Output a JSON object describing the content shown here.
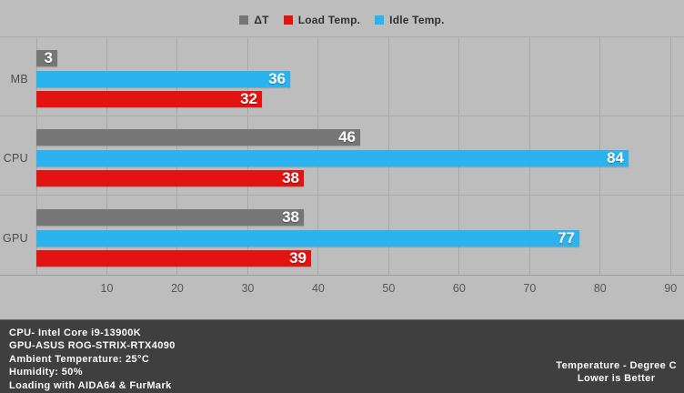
{
  "chart_data": {
    "type": "bar",
    "orientation": "horizontal",
    "categories": [
      "MB",
      "CPU",
      "GPU"
    ],
    "series": [
      {
        "name": "ΔT",
        "color": "#767676",
        "values": [
          3,
          46,
          38
        ]
      },
      {
        "name": "Load Temp.",
        "color": "#e31311",
        "values": [
          32,
          38,
          39
        ]
      },
      {
        "name": "Idle Temp.",
        "color": "#2bb3ef",
        "values": [
          36,
          84,
          77
        ]
      }
    ],
    "bar_display_order": [
      "ΔT",
      "Idle Temp.",
      "Load Temp."
    ],
    "x_ticks": [
      10,
      20,
      30,
      40,
      50,
      60,
      70,
      80,
      90
    ],
    "xlim": [
      0,
      91.9
    ],
    "grid": "vertical-and-group-separators",
    "legend_position": "top-center",
    "value_labels": "inside-end-white-bold"
  },
  "footer": {
    "left_lines": [
      "CPU- Intel Core i9-13900K",
      "GPU-ASUS ROG-STRIX-RTX4090",
      "Ambient Temperature: 25°C",
      "Humidity: 50%",
      "Loading with AIDA64  & FurMark"
    ],
    "right_lines": [
      "Temperature - Degree C",
      "Lower is Better"
    ]
  },
  "colors": {
    "chart_background": "#bdbdbd",
    "footer_background": "#3f3f3f",
    "gridline": "#a9a9a9",
    "tick_text": "#565656",
    "bar_label_text": "#ffffff"
  }
}
